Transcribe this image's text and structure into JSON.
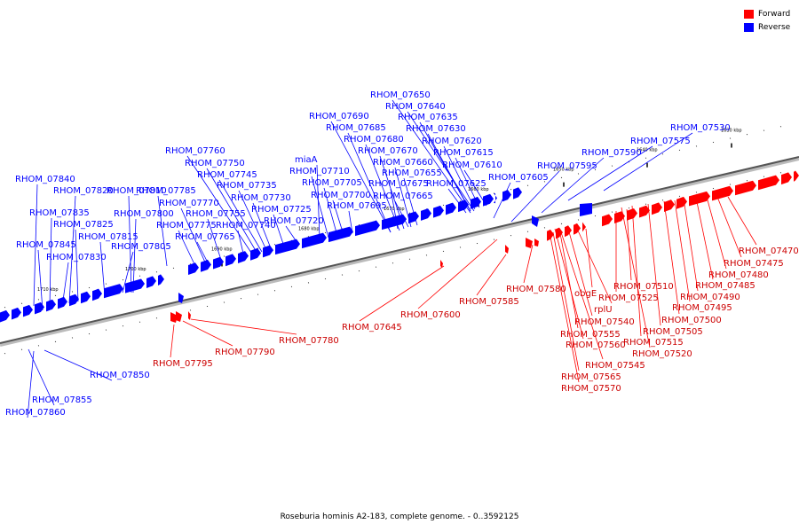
{
  "legend": {
    "forward_label": "Forward",
    "reverse_label": "Reverse",
    "forward_color": "#ff0000",
    "reverse_color": "#0000ff"
  },
  "caption": "Roseburia hominis A2-183, complete genome. - 0..3592125",
  "ticks": [
    "1630 kbp",
    "1640 kbp",
    "1650 kbp",
    "1660 kbp",
    "1670 kbp",
    "1680 kbp",
    "1690 kbp",
    "1700 kbp",
    "1710 kbp"
  ],
  "reverse_labels": [
    "RHOM_07650",
    "RHOM_07640",
    "RHOM_07690",
    "RHOM_07635",
    "RHOM_07685",
    "RHOM_07630",
    "RHOM_07680",
    "RHOM_07620",
    "RHOM_07670",
    "RHOM_07615",
    "RHOM_07660",
    "RHOM_07610",
    "RHOM_07655",
    "RHOM_07675",
    "RHOM_07625",
    "RHOM_07665",
    "RHOM_07605",
    "RHOM_07595",
    "RHOM_07590",
    "RHOM_07575",
    "RHOM_07530",
    "RHOM_07760",
    "RHOM_07750",
    "miaA",
    "RHOM_07745",
    "RHOM_07710",
    "RHOM_07735",
    "RHOM_07705",
    "RHOM_07730",
    "RHOM_07700",
    "RHOM_07725",
    "RHOM_07695",
    "RHOM_07720",
    "RHOM_07785",
    "RHOM_07770",
    "RHOM_07755",
    "RHOM_07740",
    "RHOM_07775",
    "RHOM_07765",
    "RHOM_07840",
    "RHOM_07820",
    "RHOM_07810",
    "RHOM_07835",
    "RHOM_07800",
    "RHOM_07825",
    "RHOM_07815",
    "RHOM_07805",
    "RHOM_07845",
    "RHOM_07830",
    "RHOM_07850",
    "RHOM_07855",
    "RHOM_07860"
  ],
  "forward_labels": [
    "RHOM_07470",
    "RHOM_07475",
    "RHOM_07480",
    "RHOM_07485",
    "RHOM_07490",
    "RHOM_07495",
    "RHOM_07500",
    "RHOM_07505",
    "RHOM_07515",
    "RHOM_07520",
    "RHOM_07510",
    "RHOM_07525",
    "obgE",
    "rplU",
    "RHOM_07540",
    "RHOM_07555",
    "RHOM_07560",
    "RHOM_07545",
    "RHOM_07565",
    "RHOM_07570",
    "RHOM_07580",
    "RHOM_07585",
    "RHOM_07600",
    "RHOM_07645",
    "RHOM_07780",
    "RHOM_07790",
    "RHOM_07795"
  ]
}
